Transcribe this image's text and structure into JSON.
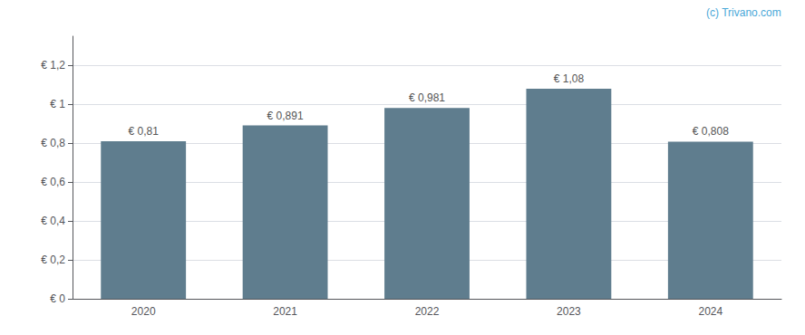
{
  "chart_data": {
    "type": "bar",
    "categories": [
      "2020",
      "2021",
      "2022",
      "2023",
      "2024"
    ],
    "values": [
      0.81,
      0.891,
      0.981,
      1.08,
      0.808
    ],
    "value_labels": [
      "€ 0,81",
      "€ 0,891",
      "€ 0,981",
      "€ 1,08",
      "€ 0,808"
    ],
    "data_labels": true,
    "color": "#5f7d8e",
    "ylim": [
      0,
      1.35
    ],
    "yticks": [
      {
        "value": 0,
        "label": "€ 0"
      },
      {
        "value": 0.2,
        "label": "€ 0,2"
      },
      {
        "value": 0.4,
        "label": "€ 0,4"
      },
      {
        "value": 0.6,
        "label": "€ 0,6"
      },
      {
        "value": 0.8,
        "label": "€ 0,8"
      },
      {
        "value": 1.0,
        "label": "€ 1"
      },
      {
        "value": 1.2,
        "label": "€ 1,2"
      }
    ],
    "grid": true,
    "annotations": [
      "(c) Trivano.com"
    ]
  }
}
